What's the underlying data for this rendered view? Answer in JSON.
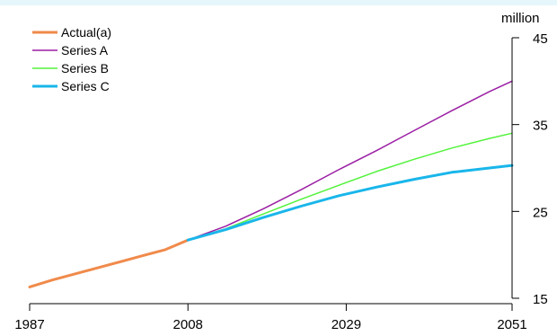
{
  "chart_data": {
    "type": "line",
    "title": "",
    "ylabel": "million",
    "xlim": [
      1987,
      2051
    ],
    "ylim": [
      15,
      45
    ],
    "x_ticks": [
      "1987",
      "2008",
      "2029",
      "2051"
    ],
    "y_ticks": [
      "45",
      "35",
      "25",
      "15"
    ],
    "legend": "top-left",
    "series": [
      {
        "name": "Actual(a)",
        "color": "#f08a4b",
        "x": [
          1987,
          1990,
          1993,
          1996,
          1999,
          2002,
          2005,
          2008
        ],
        "y": [
          16.3,
          17.1,
          17.8,
          18.5,
          19.2,
          19.9,
          20.6,
          21.7
        ]
      },
      {
        "name": "Series A",
        "color": "#9b1fa4",
        "x": [
          2008,
          2013,
          2018,
          2023,
          2028,
          2033,
          2038,
          2043,
          2048,
          2051
        ],
        "y": [
          21.7,
          23.3,
          25.3,
          27.5,
          29.8,
          32.0,
          34.3,
          36.6,
          38.8,
          40.0
        ]
      },
      {
        "name": "Series B",
        "color": "#53f23c",
        "x": [
          2008,
          2013,
          2018,
          2023,
          2028,
          2033,
          2038,
          2043,
          2048,
          2051
        ],
        "y": [
          21.7,
          23.0,
          24.7,
          26.4,
          28.0,
          29.6,
          31.0,
          32.3,
          33.4,
          34.0
        ]
      },
      {
        "name": "Series C",
        "color": "#19b6ea",
        "x": [
          2008,
          2013,
          2018,
          2023,
          2028,
          2033,
          2038,
          2043,
          2048,
          2051
        ],
        "y": [
          21.7,
          22.9,
          24.3,
          25.6,
          26.8,
          27.8,
          28.7,
          29.5,
          30.0,
          30.3
        ]
      }
    ]
  }
}
